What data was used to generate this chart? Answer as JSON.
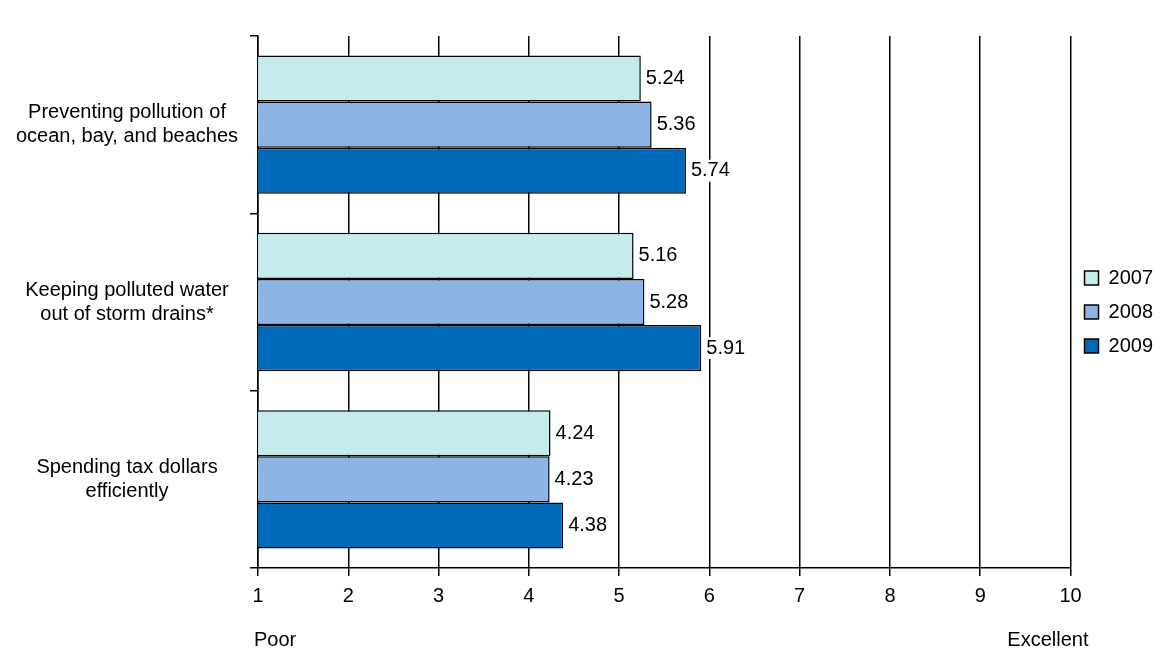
{
  "chart_data": {
    "type": "bar",
    "orientation": "horizontal",
    "categories": [
      "Preventing pollution of ocean, bay, and beaches",
      "Keeping polluted water out of storm drains*",
      "Spending tax dollars efficiently"
    ],
    "series": [
      {
        "name": "2007",
        "color": "#c4ecec",
        "values": [
          5.24,
          5.16,
          4.24
        ]
      },
      {
        "name": "2008",
        "color": "#8cb4e4",
        "values": [
          5.36,
          5.28,
          4.23
        ]
      },
      {
        "name": "2009",
        "color": "#0068b8",
        "values": [
          5.74,
          5.91,
          4.38
        ]
      }
    ],
    "xlim": [
      1,
      10
    ],
    "xticks": [
      1,
      2,
      3,
      4,
      5,
      6,
      7,
      8,
      9,
      10
    ],
    "grid": "x",
    "legend": "right",
    "data_labels": true,
    "annotations": [
      "Poor",
      "Excellent"
    ]
  }
}
